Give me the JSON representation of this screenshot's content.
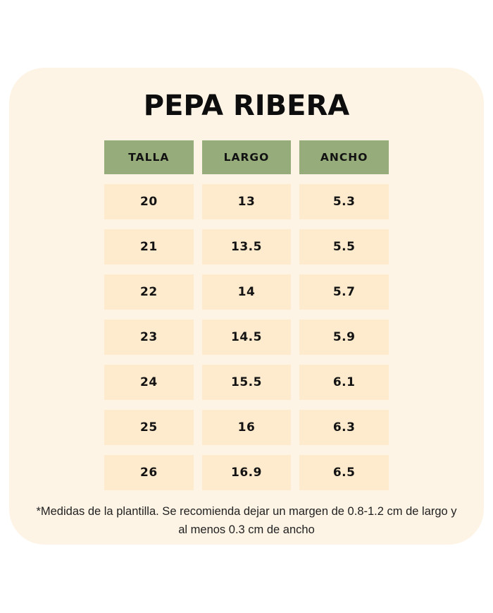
{
  "card": {
    "title": "PEPA RIBERA",
    "footnote": "*Medidas de la plantilla. Se recomienda dejar un margen de 0.8-1.2 cm de largo y al menos 0.3 cm de ancho"
  },
  "colors": {
    "page_background": "#FFFFFF",
    "card_background": "#FEF4E6",
    "header_cell_background": "#96AC7B",
    "data_cell_background": "#FEEACC",
    "text": "#0D0D0D"
  },
  "chart_data": {
    "type": "table",
    "title": "PEPA RIBERA",
    "columns": [
      "TALLA",
      "LARGO",
      "ANCHO"
    ],
    "rows": [
      [
        "20",
        "13",
        "5.3"
      ],
      [
        "21",
        "13.5",
        "5.5"
      ],
      [
        "22",
        "14",
        "5.7"
      ],
      [
        "23",
        "14.5",
        "5.9"
      ],
      [
        "24",
        "15.5",
        "6.1"
      ],
      [
        "25",
        "16",
        "6.3"
      ],
      [
        "26",
        "16.9",
        "6.5"
      ]
    ],
    "units": "cm",
    "note": "*Medidas de la plantilla. Se recomienda dejar un margen de 0.8-1.2 cm de largo y al menos 0.3 cm de ancho"
  }
}
